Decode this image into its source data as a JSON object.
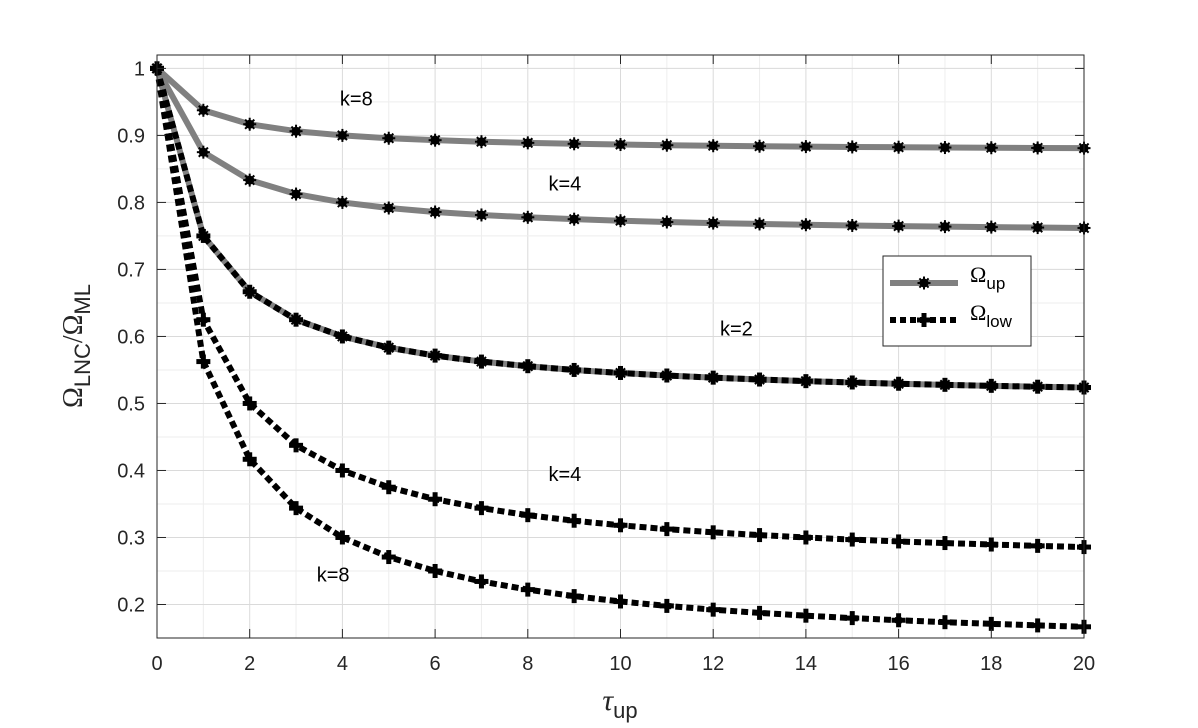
{
  "chart_data": {
    "type": "line",
    "xlabel": {
      "main": "τ",
      "sub": "up"
    },
    "ylabel": {
      "main1": "Ω",
      "sub1": "LNC",
      "slash": "/",
      "main2": "Ω",
      "sub2": "ML"
    },
    "xlim": [
      0,
      20
    ],
    "ylim": [
      0.15,
      1.02
    ],
    "xticks": [
      0,
      2,
      4,
      6,
      8,
      10,
      12,
      14,
      16,
      18,
      20
    ],
    "yticks": [
      0.2,
      0.3,
      0.4,
      0.5,
      0.6,
      0.7,
      0.8,
      0.9,
      1
    ],
    "grid": true,
    "legend_position": "right",
    "x": [
      0,
      1,
      2,
      3,
      4,
      5,
      6,
      7,
      8,
      9,
      10,
      11,
      12,
      13,
      14,
      15,
      16,
      17,
      18,
      19,
      20
    ],
    "series": [
      {
        "name": "Ω_up",
        "group": "up",
        "k": 8,
        "color": "#808080",
        "style": "solid",
        "values": [
          1,
          0.9375,
          0.9167,
          0.9063,
          0.9,
          0.8958,
          0.8929,
          0.8906,
          0.8889,
          0.8875,
          0.8864,
          0.8854,
          0.8846,
          0.8839,
          0.8833,
          0.8828,
          0.8824,
          0.8819,
          0.8816,
          0.8813,
          0.881
        ]
      },
      {
        "name": "Ω_up",
        "group": "up",
        "k": 4,
        "color": "#808080",
        "style": "solid",
        "values": [
          1,
          0.875,
          0.8333,
          0.8125,
          0.8,
          0.7917,
          0.7857,
          0.7813,
          0.7778,
          0.775,
          0.7727,
          0.7708,
          0.7692,
          0.7679,
          0.7667,
          0.7656,
          0.7647,
          0.7639,
          0.7632,
          0.7625,
          0.7619
        ]
      },
      {
        "name": "Ω_up",
        "group": "up",
        "k": 2,
        "color": "#808080",
        "style": "solid",
        "values": [
          1,
          0.75,
          0.6667,
          0.625,
          0.6,
          0.5833,
          0.5714,
          0.5625,
          0.5556,
          0.55,
          0.5455,
          0.5417,
          0.5385,
          0.5357,
          0.5333,
          0.5313,
          0.5294,
          0.5278,
          0.5263,
          0.525,
          0.5238
        ]
      },
      {
        "name": "Ω_low",
        "group": "low",
        "k": 2,
        "color": "#000000",
        "style": "dotted",
        "values": [
          1,
          0.75,
          0.6667,
          0.625,
          0.6,
          0.5833,
          0.5714,
          0.5625,
          0.5556,
          0.55,
          0.5455,
          0.5417,
          0.5385,
          0.5357,
          0.5333,
          0.5313,
          0.5294,
          0.5278,
          0.5263,
          0.525,
          0.5238
        ]
      },
      {
        "name": "Ω_low",
        "group": "low",
        "k": 4,
        "color": "#000000",
        "style": "dotted",
        "values": [
          1,
          0.625,
          0.5,
          0.4375,
          0.4,
          0.375,
          0.3571,
          0.3438,
          0.3333,
          0.325,
          0.3182,
          0.3125,
          0.3077,
          0.3036,
          0.3,
          0.2969,
          0.2941,
          0.2917,
          0.2895,
          0.2875,
          0.2857
        ]
      },
      {
        "name": "Ω_low",
        "group": "low",
        "k": 8,
        "color": "#000000",
        "style": "dotted",
        "values": [
          1,
          0.5625,
          0.4167,
          0.3438,
          0.3,
          0.2708,
          0.25,
          0.2344,
          0.2222,
          0.2125,
          0.2045,
          0.1979,
          0.1923,
          0.1875,
          0.1833,
          0.1797,
          0.1765,
          0.1736,
          0.1711,
          0.1688,
          0.1667
        ]
      }
    ],
    "annotations": [
      {
        "text": "k=8",
        "x": 4.3,
        "y": 0.955
      },
      {
        "text": "k=4",
        "x": 8.8,
        "y": 0.828
      },
      {
        "text": "k=2",
        "x": 12.5,
        "y": 0.612
      },
      {
        "text": "k=4",
        "x": 8.8,
        "y": 0.395
      },
      {
        "text": "k=8",
        "x": 3.8,
        "y": 0.245
      }
    ],
    "legend": [
      {
        "main": "Ω",
        "sub": "up",
        "style": "solid",
        "color": "#808080"
      },
      {
        "main": "Ω",
        "sub": "low",
        "style": "dotted",
        "color": "#000000"
      }
    ]
  }
}
